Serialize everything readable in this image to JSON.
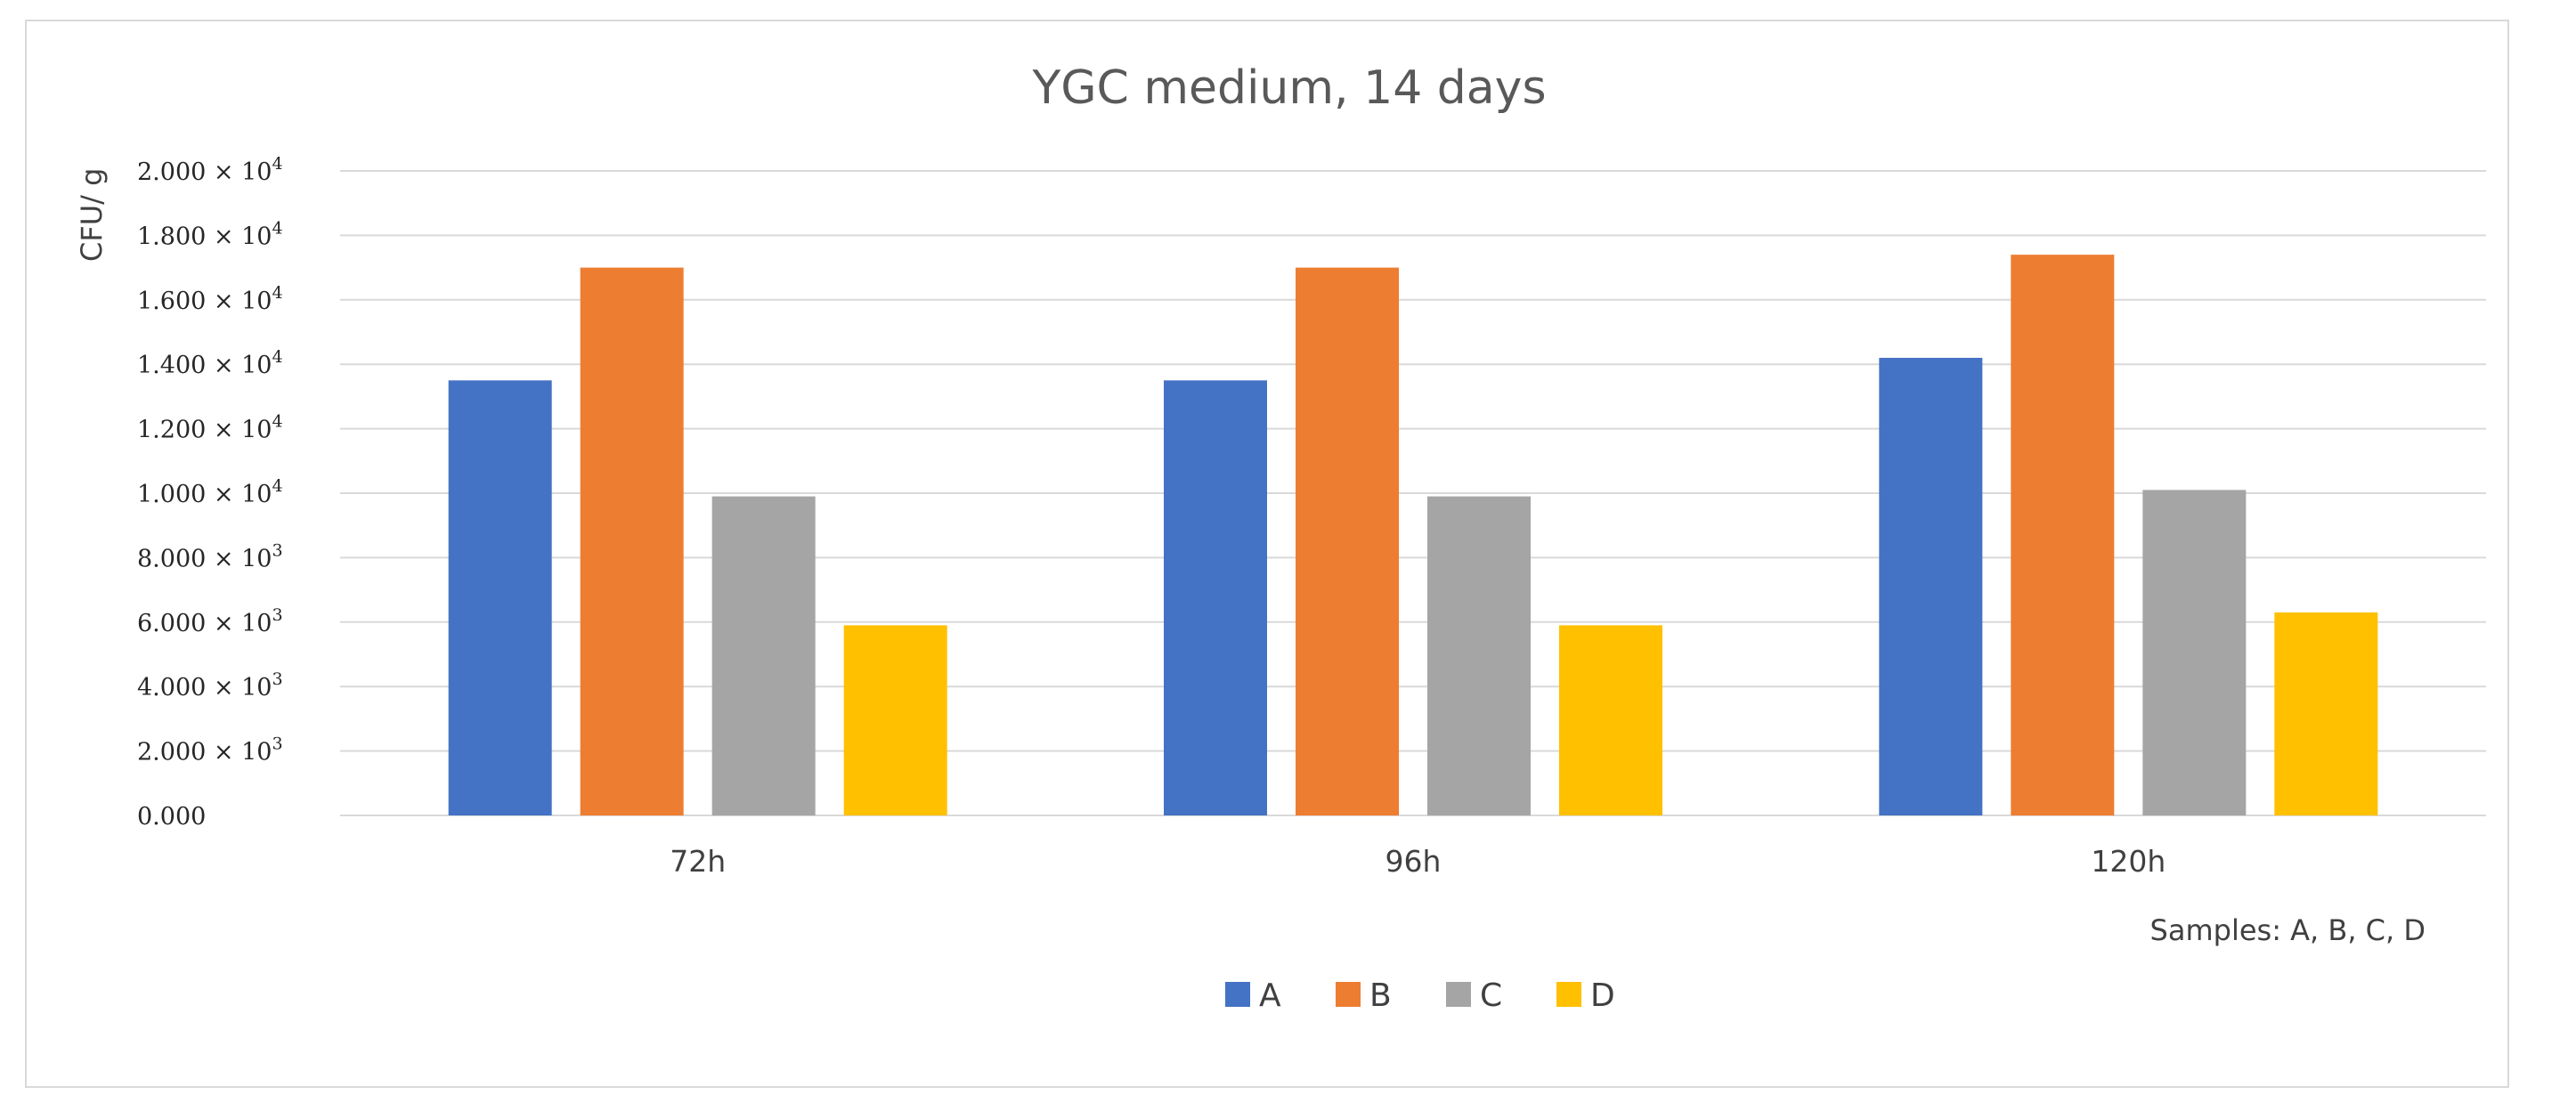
{
  "chart_data": {
    "type": "bar",
    "title": "YGC medium, 14 days",
    "xlabel": "Samples: A, B, C, D",
    "ylabel": "CFU/ g",
    "categories": [
      "72h",
      "96h",
      "120h"
    ],
    "series": [
      {
        "name": "A",
        "color": "#4472C4",
        "values": [
          13500,
          13500,
          14200
        ]
      },
      {
        "name": "B",
        "color": "#ED7D31",
        "values": [
          17000,
          17000,
          17400
        ]
      },
      {
        "name": "C",
        "color": "#A5A5A5",
        "values": [
          9900,
          9900,
          10100
        ]
      },
      {
        "name": "D",
        "color": "#FFC000",
        "values": [
          5900,
          5900,
          6300
        ]
      }
    ],
    "ylim": [
      0,
      20000
    ],
    "yticks": [
      {
        "value": 0,
        "mantissa": "0.000",
        "exp": ""
      },
      {
        "value": 2000,
        "mantissa": "2.000 × 10",
        "exp": "3"
      },
      {
        "value": 4000,
        "mantissa": "4.000 × 10",
        "exp": "3"
      },
      {
        "value": 6000,
        "mantissa": "6.000 × 10",
        "exp": "3"
      },
      {
        "value": 8000,
        "mantissa": "8.000 × 10",
        "exp": "3"
      },
      {
        "value": 10000,
        "mantissa": "1.000 × 10",
        "exp": "4"
      },
      {
        "value": 12000,
        "mantissa": "1.200 × 10",
        "exp": "4"
      },
      {
        "value": 14000,
        "mantissa": "1.400 × 10",
        "exp": "4"
      },
      {
        "value": 16000,
        "mantissa": "1.600 × 10",
        "exp": "4"
      },
      {
        "value": 18000,
        "mantissa": "1.800 × 10",
        "exp": "4"
      },
      {
        "value": 20000,
        "mantissa": "2.000 × 10",
        "exp": "4"
      }
    ],
    "grid": true,
    "legend_position": "bottom-center",
    "gridline_color": "#d9d9d9"
  }
}
